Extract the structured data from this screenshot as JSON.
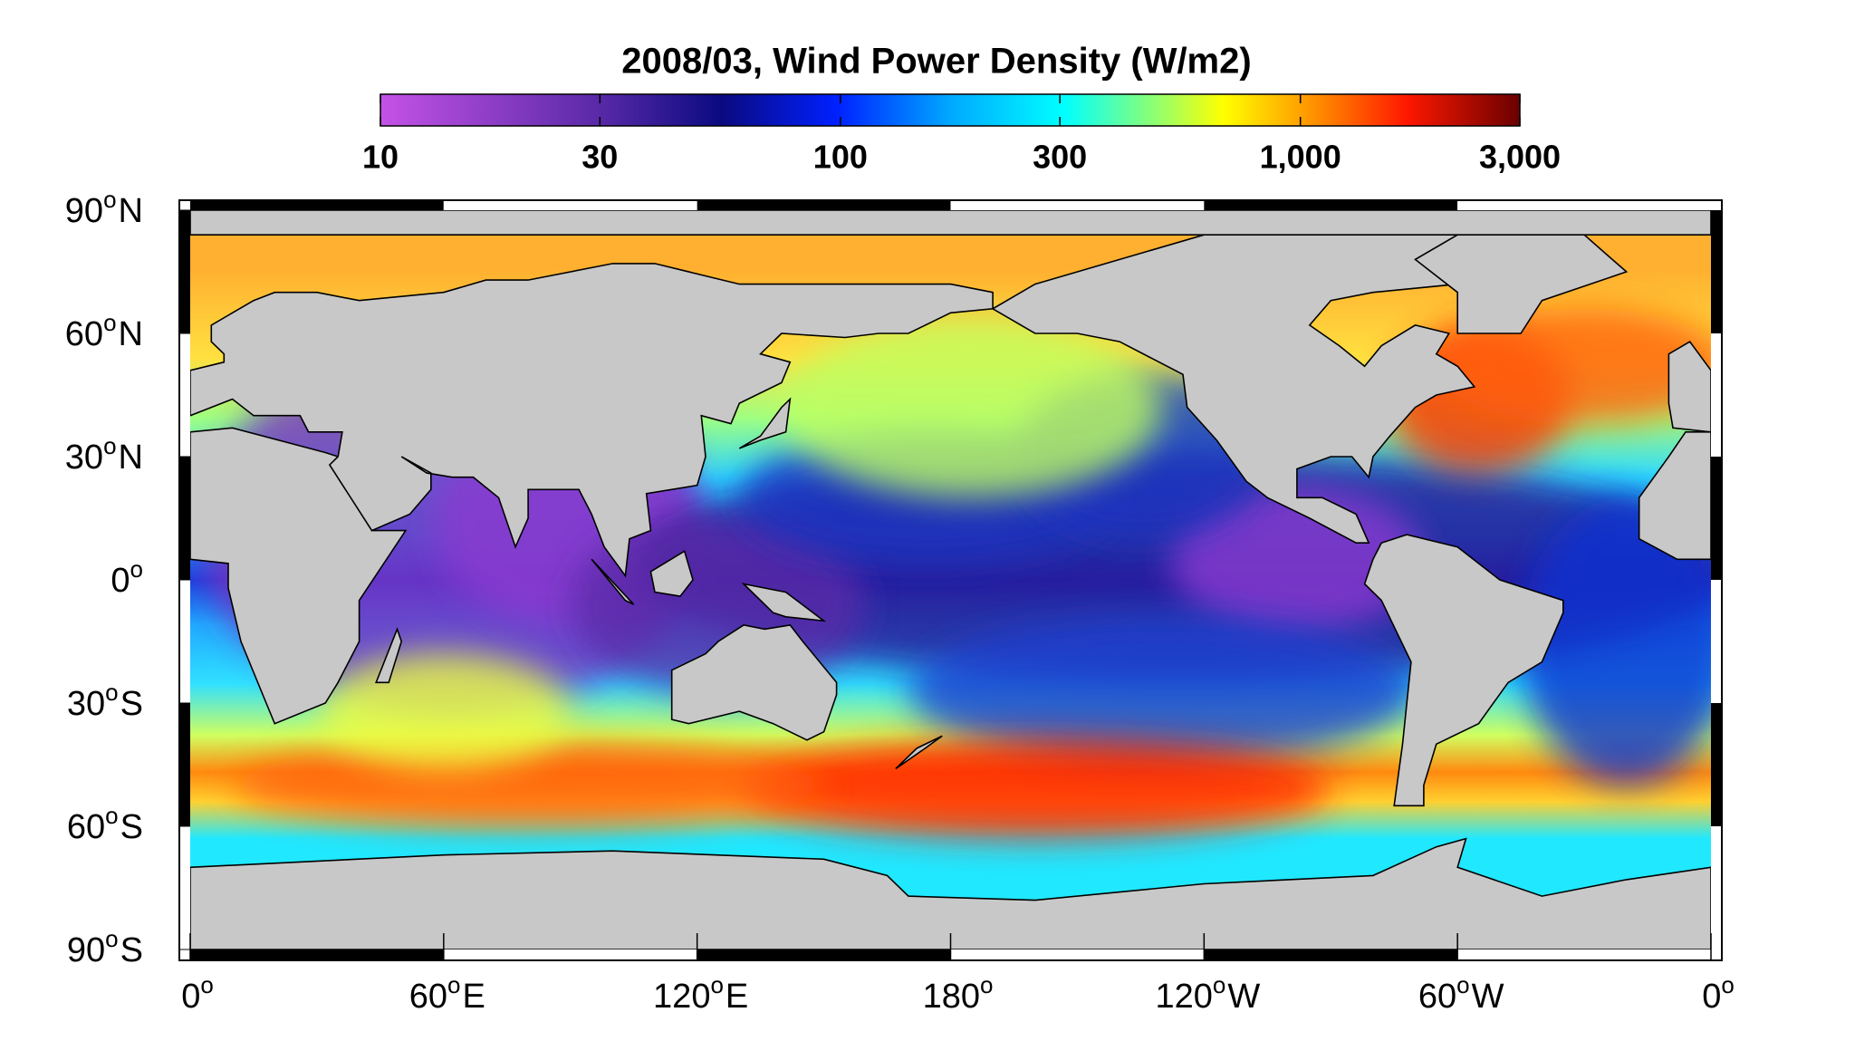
{
  "title": "2008/03, Wind Power Density (W/m2)",
  "colorbar": {
    "scale": "log",
    "lim": [
      10,
      3000
    ],
    "ticks": [
      10,
      30,
      100,
      300,
      {
        "value": 1000,
        "label": "1,000"
      },
      {
        "value": 3000,
        "label": "3,000"
      }
    ]
  },
  "map": {
    "projection": "equirectangular",
    "lon_lim": [
      0,
      360
    ],
    "lat_lim": [
      -90,
      90
    ],
    "degree_mark": "o",
    "lat_ticks": [
      {
        "value": 90,
        "label": "90",
        "hemi": "N"
      },
      {
        "value": 60,
        "label": "60",
        "hemi": "N"
      },
      {
        "value": 30,
        "label": "30",
        "hemi": "N"
      },
      {
        "value": 0,
        "label": "0"
      },
      {
        "value": -30,
        "label": "30",
        "hemi": "S"
      },
      {
        "value": -60,
        "label": "60",
        "hemi": "S"
      },
      {
        "value": -90,
        "label": "90",
        "hemi": "S"
      }
    ],
    "lon_ticks": [
      {
        "value": 0,
        "label": "0"
      },
      {
        "value": 60,
        "label": "60",
        "hemi": "E"
      },
      {
        "value": 120,
        "label": "120",
        "hemi": "E"
      },
      {
        "value": 180,
        "label": "180"
      },
      {
        "value": 240,
        "label": "120",
        "hemi": "W"
      },
      {
        "value": 300,
        "label": "60",
        "hemi": "W"
      },
      {
        "value": 360,
        "label": "0"
      }
    ]
  }
}
